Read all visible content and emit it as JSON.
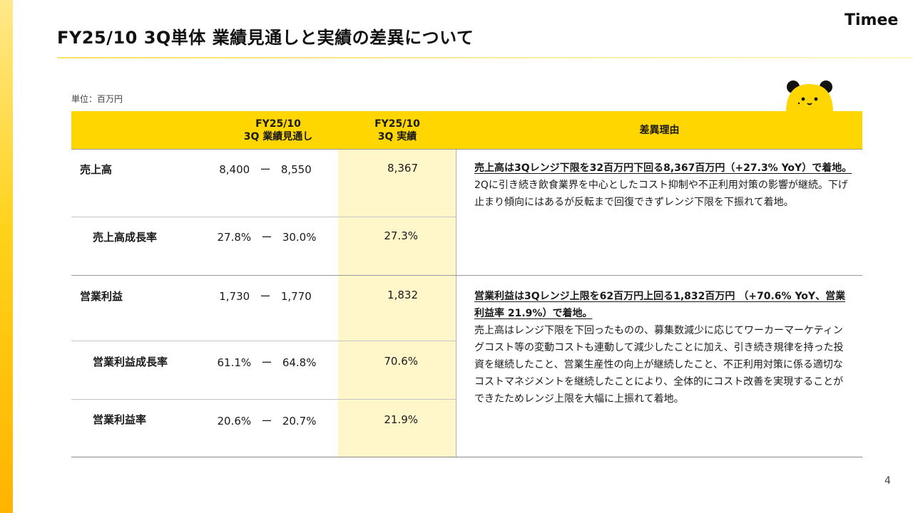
{
  "title": "FY25/10 3Q単体 業績見通しと実績の差異について",
  "brand": {
    "logo_text": "Timee",
    "accent_color": "#ffd600"
  },
  "unit_label": "単位：百万円",
  "table": {
    "headers": {
      "forecast": [
        "FY25/10",
        "3Q 業績見通し"
      ],
      "actual": [
        "FY25/10",
        "3Q 実績"
      ],
      "reason": "差異理由"
    },
    "rows": [
      {
        "label": "売上高",
        "range_low": "8,400",
        "range_high": "8,550",
        "actual": "8,367"
      },
      {
        "label": "売上高成長率",
        "range_low": "27.8%",
        "range_high": "30.0%",
        "actual": "27.3%"
      },
      {
        "label": "営業利益",
        "range_low": "1,730",
        "range_high": "1,770",
        "actual": "1,832"
      },
      {
        "label": "営業利益成長率",
        "range_low": "61.1%",
        "range_high": "64.8%",
        "actual": "70.6%"
      },
      {
        "label": "営業利益率",
        "range_low": "20.6%",
        "range_high": "20.7%",
        "actual": "21.9%"
      }
    ],
    "range_separator": "ー",
    "reasons": [
      {
        "headline": "売上高は3Qレンジ下限を32百万円下回る8,367百万円（+27.3% YoY）で着地。",
        "body": "2Qに引き続き飲食業界を中心としたコスト抑制や不正利用対策の影響が継続。下げ止まり傾向にはあるが反転まで回復できずレンジ下限を下振れて着地。"
      },
      {
        "headline": "営業利益は3Qレンジ上限を62百万円上回る1,832百万円 （+70.6% YoY、営業利益率 21.9%）で着地。",
        "body": "売上高はレンジ下限を下回ったものの、募集数減少に応じてワーカーマーケティングコスト等の変動コストも連動して減少したことに加え、引き続き規律を持った投資を継続したこと、営業生産性の向上が継続したこと、不正利用対策に係る適切なコストマネジメントを継続したことにより、全体的にコスト改善を実現することができたためレンジ上限を大幅に上振れて着地。"
      }
    ]
  },
  "page_number": "4"
}
